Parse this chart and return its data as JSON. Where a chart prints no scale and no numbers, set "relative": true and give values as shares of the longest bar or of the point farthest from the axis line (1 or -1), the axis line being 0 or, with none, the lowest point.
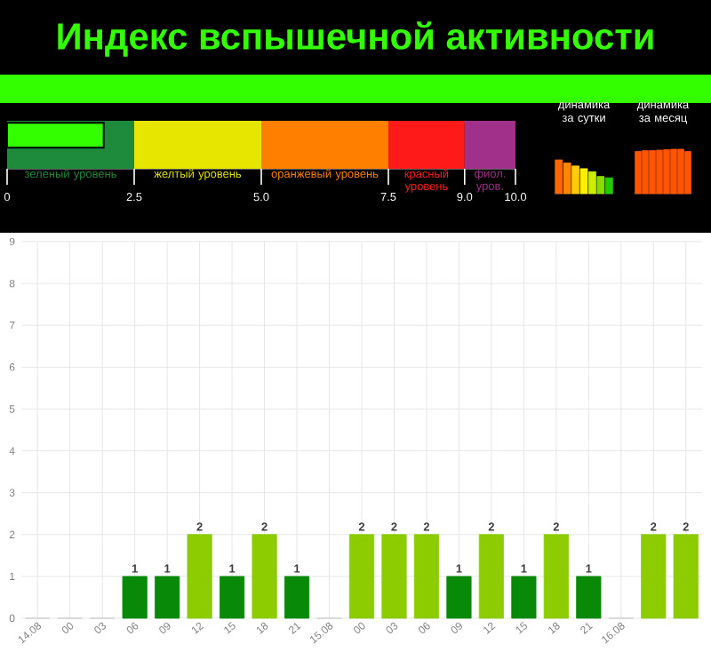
{
  "chart_data": [
    {
      "type": "bar",
      "orientation": "horizontal",
      "title": "Индекс вспышечной активности",
      "categories": [
        null
      ],
      "values": [
        1.9
      ],
      "color": "#33ff00",
      "xlim": [
        0,
        10
      ],
      "xticks": [
        0,
        2.5,
        {
          "value": 5,
          "label": "5.0"
        },
        7.5,
        {
          "value": 9,
          "label": "9.0"
        },
        {
          "value": 10,
          "label": "10.0"
        }
      ],
      "bands": [
        {
          "axis": "x",
          "from": 0,
          "to": 2.5,
          "label": "зеленый уровень",
          "color": "#1e8a3c"
        },
        {
          "axis": "x",
          "from": 2.5,
          "to": 5,
          "label": "желтый уровень",
          "color": "#e6e600"
        },
        {
          "axis": "x",
          "from": 5,
          "to": 7.5,
          "label": "оранжевый уровень",
          "color": "#ff7f00"
        },
        {
          "axis": "x",
          "from": 7.5,
          "to": 9,
          "label": "красный уровень",
          "color": "#ff1a1a"
        },
        {
          "axis": "x",
          "from": 9,
          "to": 10,
          "label": "фиол. уров.",
          "color": "#a0308a"
        }
      ]
    },
    {
      "type": "bar",
      "title": "динамика за сутки",
      "relative": true,
      "categories": [
        null,
        null,
        null,
        null,
        null,
        null,
        null
      ],
      "values": [
        1,
        0.91,
        0.82,
        0.74,
        0.65,
        0.51,
        0.47
      ],
      "colors": [
        "#ff6600",
        "#ff8800",
        "#ffcc00",
        "#ffee00",
        "#ccee00",
        "#88dd00",
        "#22cc00"
      ]
    },
    {
      "type": "bar",
      "title": "динамика за месяц",
      "relative": true,
      "categories": [
        null,
        null,
        null,
        null,
        null,
        null,
        null,
        null
      ],
      "values": [
        0.95,
        0.97,
        0.97,
        0.98,
        0.99,
        1,
        1,
        0.95
      ],
      "colors": [
        "#ff5500",
        "#ff5500",
        "#ff5500",
        "#ff5500",
        "#ff5500",
        "#ff5500",
        "#ff5500",
        "#ff5500"
      ]
    },
    {
      "type": "bar",
      "categories": [
        "14.08",
        "00",
        "03",
        "06",
        "09",
        "12",
        "15",
        "18",
        "21",
        "15.08",
        "00",
        "03",
        "06",
        "09",
        "12",
        "15",
        "18",
        "21",
        "16.08",
        null,
        null
      ],
      "values": [
        0,
        0,
        0,
        1,
        1,
        2,
        1,
        2,
        1,
        0,
        2,
        2,
        2,
        1,
        2,
        1,
        2,
        1,
        0,
        2,
        2
      ],
      "value_labels": [
        null,
        null,
        null,
        "1",
        "1",
        "2",
        "1",
        "2",
        "1",
        null,
        "2",
        "2",
        "2",
        "1",
        "2",
        "1",
        "2",
        "1",
        null,
        "2",
        "2"
      ],
      "colors": [
        "#cccccc",
        "#cccccc",
        "#cccccc",
        "#088a08",
        "#088a08",
        "#8ccc00",
        "#088a08",
        "#8ccc00",
        "#088a08",
        "#cccccc",
        "#8ccc00",
        "#8ccc00",
        "#8ccc00",
        "#088a08",
        "#8ccc00",
        "#088a08",
        "#8ccc00",
        "#088a08",
        "#cccccc",
        "#8ccc00",
        "#8ccc00"
      ],
      "ylim": [
        0,
        9
      ],
      "yticks": [
        0,
        1,
        2,
        3,
        4,
        5,
        6,
        7,
        8,
        9
      ],
      "grid": true
    }
  ]
}
